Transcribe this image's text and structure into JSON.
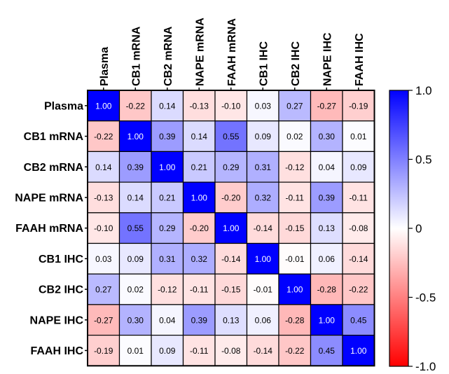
{
  "chart_data": {
    "type": "heatmap",
    "title": "",
    "xlabel": "",
    "ylabel": "",
    "rows": [
      "Plasma",
      "CB1 mRNA",
      "CB2 mRNA",
      "NAPE mRNA",
      "FAAH mRNA",
      "CB1 IHC",
      "CB2 IHC",
      "NAPE IHC",
      "FAAH IHC"
    ],
    "columns": [
      "Plasma",
      "CB1 mRNA",
      "CB2 mRNA",
      "NAPE mRNA",
      "FAAH mRNA",
      "CB1 IHC",
      "CB2 IHC",
      "NAPE IHC",
      "FAAH IHC"
    ],
    "values": [
      [
        1.0,
        -0.22,
        0.14,
        -0.13,
        -0.1,
        0.03,
        0.27,
        -0.27,
        -0.19
      ],
      [
        -0.22,
        1.0,
        0.39,
        0.14,
        0.55,
        0.09,
        0.02,
        0.3,
        0.01
      ],
      [
        0.14,
        0.39,
        1.0,
        0.21,
        0.29,
        0.31,
        -0.12,
        0.04,
        0.09
      ],
      [
        -0.13,
        0.14,
        0.21,
        1.0,
        -0.2,
        0.32,
        -0.11,
        0.39,
        -0.11
      ],
      [
        -0.1,
        0.55,
        0.29,
        -0.2,
        1.0,
        -0.14,
        -0.15,
        0.13,
        -0.08
      ],
      [
        0.03,
        0.09,
        0.31,
        0.32,
        -0.14,
        1.0,
        -0.01,
        0.06,
        -0.14
      ],
      [
        0.27,
        0.02,
        -0.12,
        -0.11,
        -0.15,
        -0.01,
        1.0,
        -0.28,
        -0.22
      ],
      [
        -0.27,
        0.3,
        0.04,
        0.39,
        0.13,
        0.06,
        -0.28,
        1.0,
        0.45
      ],
      [
        -0.19,
        0.01,
        0.09,
        -0.11,
        -0.08,
        -0.14,
        -0.22,
        0.45,
        1.0
      ]
    ],
    "value_labels": [
      [
        "1.00",
        "-0.22",
        "0.14",
        "-0.13",
        "-0.10",
        "0.03",
        "0.27",
        "-0.27",
        "-0.19"
      ],
      [
        "-0.22",
        "1.00",
        "0.39",
        "0.14",
        "0.55",
        "0.09",
        "0.02",
        "0.30",
        "0.01"
      ],
      [
        "0.14",
        "0.39",
        "1.00",
        "0.21",
        "0.29",
        "0.31",
        "-0.12",
        "0.04",
        "0.09"
      ],
      [
        "-0.13",
        "0.14",
        "0.21",
        "1.00",
        "-0.20",
        "0.32",
        "-0.11",
        "0.39",
        "-0.11"
      ],
      [
        "-0.10",
        "0.55",
        "0.29",
        "-0.20",
        "1.00",
        "-0.14",
        "-0.15",
        "0.13",
        "-0.08"
      ],
      [
        "0.03",
        "0.09",
        "0.31",
        "0.32",
        "-0.14",
        "1.00",
        "-0.01",
        "0.06",
        "-0.14"
      ],
      [
        "0.27",
        "0.02",
        "-0.12",
        "-0.11",
        "-0.15",
        "-0.01",
        "1.00",
        "-0.28",
        "-0.22"
      ],
      [
        "-0.27",
        "0.30",
        "0.04",
        "0.39",
        "0.13",
        "0.06",
        "-0.28",
        "1.00",
        "0.45"
      ],
      [
        "-0.19",
        "0.01",
        "0.09",
        "-0.11",
        "-0.08",
        "-0.14",
        "-0.22",
        "0.45",
        "1.00"
      ]
    ],
    "colorscale": {
      "min": -1.0,
      "max": 1.0,
      "min_color": "#ff0000",
      "mid_color": "#ffffff",
      "max_color": "#0000ff"
    },
    "colorbar_ticks": [
      {
        "value": 1.0,
        "label": "1.0"
      },
      {
        "value": 0.5,
        "label": "0.5"
      },
      {
        "value": 0,
        "label": "0"
      },
      {
        "value": -0.5,
        "label": "-0.5"
      },
      {
        "value": -1.0,
        "label": "-1.0"
      }
    ],
    "legend_position": "right"
  }
}
